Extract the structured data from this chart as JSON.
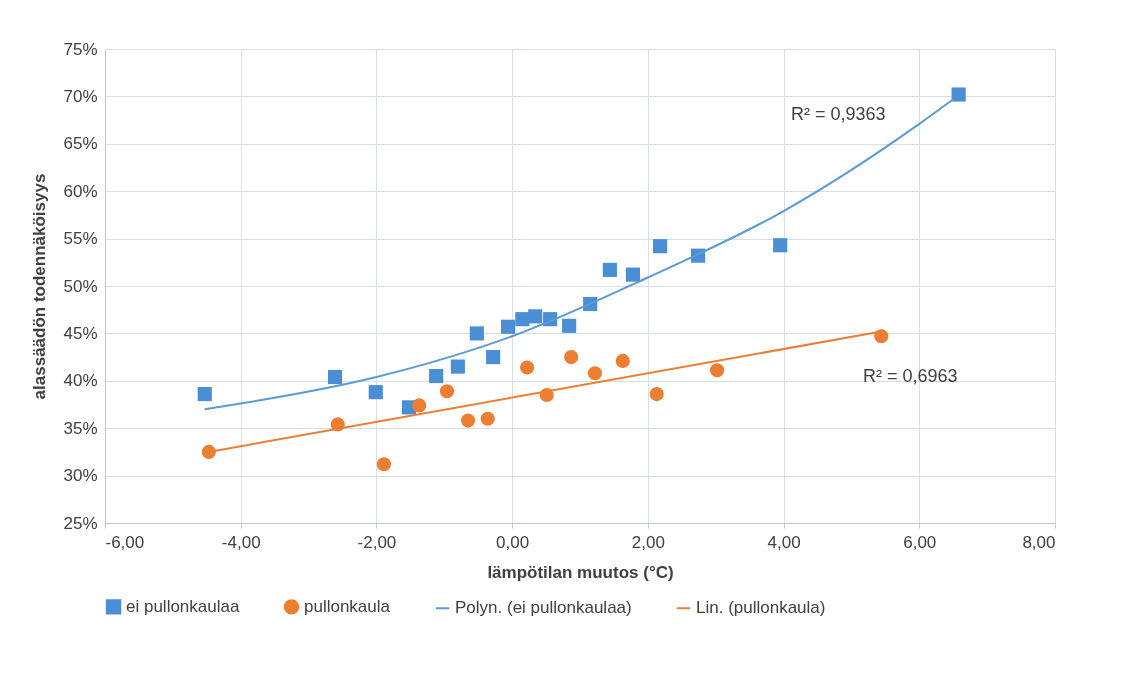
{
  "chart_data": {
    "type": "scatter",
    "xlabel": "lämpötilan muutos (°C)",
    "ylabel": "alassäädön todennäköisyys",
    "xlim": [
      -6,
      8
    ],
    "ylim": [
      25,
      75
    ],
    "xticks": [
      {
        "value": -6,
        "label": "-6,00"
      },
      {
        "value": -4,
        "label": "-4,00"
      },
      {
        "value": -2,
        "label": "-2,00"
      },
      {
        "value": 0,
        "label": "0,00"
      },
      {
        "value": 2,
        "label": "2,00"
      },
      {
        "value": 4,
        "label": "4,00"
      },
      {
        "value": 6,
        "label": "6,00"
      },
      {
        "value": 8,
        "label": "8,00"
      }
    ],
    "yticks": [
      {
        "value": 25,
        "label": "25%"
      },
      {
        "value": 30,
        "label": "30%"
      },
      {
        "value": 35,
        "label": "35%"
      },
      {
        "value": 40,
        "label": "40%"
      },
      {
        "value": 45,
        "label": "45%"
      },
      {
        "value": 50,
        "label": "50%"
      },
      {
        "value": 55,
        "label": "55%"
      },
      {
        "value": 60,
        "label": "60%"
      },
      {
        "value": 65,
        "label": "65%"
      },
      {
        "value": 70,
        "label": "70%"
      },
      {
        "value": 75,
        "label": "75%"
      }
    ],
    "grid": true,
    "legend": "bottom",
    "series": [
      {
        "name": "ei pullonkaulaa",
        "marker": "square",
        "color": "#4a8ed6",
        "x": [
          -4.53,
          -2.61,
          -2.01,
          -1.52,
          -1.12,
          -0.8,
          -0.52,
          -0.28,
          -0.06,
          0.15,
          0.34,
          0.56,
          0.84,
          1.15,
          1.44,
          1.78,
          2.18,
          2.74,
          3.95,
          6.58
        ],
        "values": [
          38.6,
          40.4,
          38.8,
          37.2,
          40.5,
          41.5,
          45.0,
          42.5,
          45.7,
          46.5,
          46.8,
          46.5,
          45.8,
          48.1,
          51.7,
          51.2,
          54.2,
          53.2,
          54.3,
          70.2
        ]
      },
      {
        "name": "pullonkaula",
        "marker": "circle",
        "color": "#ed7d31",
        "x": [
          -4.47,
          -2.57,
          -1.89,
          -1.37,
          -0.96,
          -0.65,
          -0.36,
          0.22,
          0.51,
          0.87,
          1.22,
          1.63,
          2.13,
          3.02,
          5.44
        ],
        "values": [
          32.5,
          35.4,
          31.2,
          37.4,
          38.9,
          35.8,
          36.0,
          41.4,
          38.5,
          42.5,
          40.8,
          42.1,
          38.6,
          41.1,
          44.7
        ]
      },
      {
        "name": "Polyn. (ei pullonkaulaa)",
        "type": "line",
        "color": "#5b9bd5",
        "x": [
          -4.53,
          -4,
          -2,
          0,
          2,
          4,
          6,
          6.5
        ],
        "values": [
          37.0,
          37.6,
          40.4,
          44.7,
          50.9,
          57.9,
          67.1,
          69.7
        ]
      },
      {
        "name": "Lin. (pullonkaula)",
        "type": "line",
        "color": "#ed7d31",
        "x": [
          -4.47,
          5.44
        ],
        "values": [
          32.5,
          45.2
        ]
      }
    ],
    "annotations": [
      "R² = 0,9363",
      "R² = 0,6963"
    ]
  }
}
